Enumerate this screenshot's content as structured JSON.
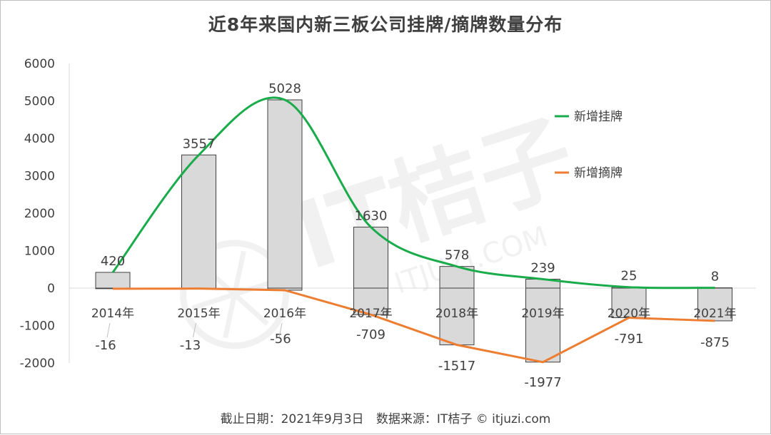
{
  "footer": {
    "cutoff": "截止日期：2021年9月3日",
    "source": "数据来源：IT桔子 © itjuzi.com"
  },
  "watermark": {
    "brand": "IT桔子",
    "domain": "ITJUZI.COM"
  },
  "colors": {
    "listing_line": "#1aab4b",
    "delisting_line": "#ed7d31",
    "bar_fill": "#d9d9d9",
    "bar_stroke": "#404040"
  },
  "chart_data": {
    "type": "bar",
    "title": "近8年来国内新三板公司挂牌/摘牌数量分布",
    "categories": [
      "2014年",
      "2015年",
      "2016年",
      "2017年",
      "2018年",
      "2019年",
      "2020年",
      "2021年"
    ],
    "series": [
      {
        "name": "新增挂牌",
        "render": "bar+smooth-line",
        "values": [
          420,
          3557,
          5028,
          1630,
          578,
          239,
          25,
          8
        ]
      },
      {
        "name": "新增摘牌",
        "render": "bar+line",
        "values": [
          -16,
          -13,
          -56,
          -709,
          -1517,
          -1977,
          -791,
          -875
        ]
      }
    ],
    "ylim": [
      -2000,
      6000
    ],
    "yticks": [
      -2000,
      -1000,
      0,
      1000,
      2000,
      3000,
      4000,
      5000,
      6000
    ],
    "xlabel": "",
    "ylabel": "",
    "legend": "right",
    "grid": false
  }
}
